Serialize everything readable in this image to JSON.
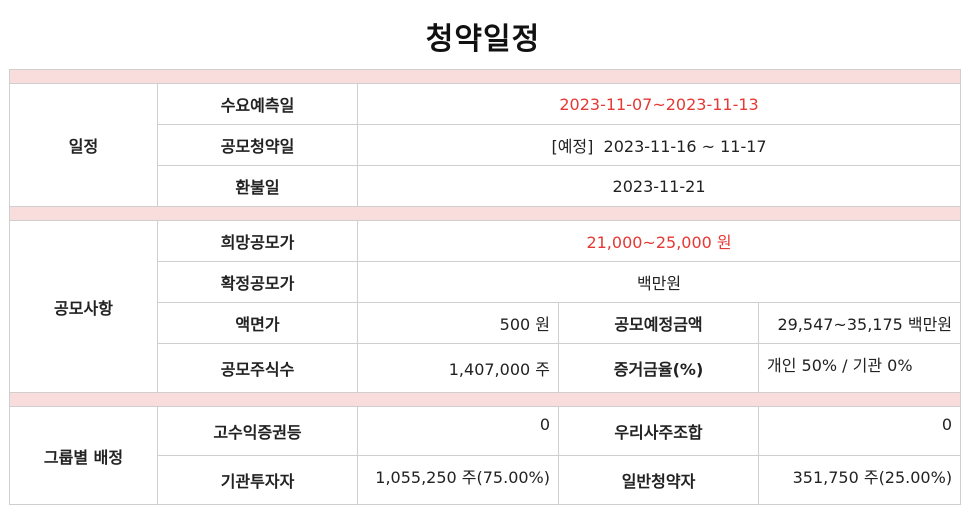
{
  "title": "청약일정",
  "schedule": {
    "section_label": "일정",
    "demand_forecast": {
      "label": "수요예측일",
      "value": "2023-11-07~2023-11-13"
    },
    "subscription": {
      "label": "공모청약일",
      "value": "[예정]  2023-11-16 ~ 11-17"
    },
    "refund": {
      "label": "환불일",
      "value": "2023-11-21"
    }
  },
  "offering": {
    "section_label": "공모사항",
    "desired_price": {
      "label": "희망공모가",
      "value": "21,000~25,000 원"
    },
    "confirmed_price": {
      "label": "확정공모가",
      "value": "백만원"
    },
    "par_value": {
      "label": "액면가",
      "value": "500 원"
    },
    "planned_amount": {
      "label": "공모예정금액",
      "value": "29,547~35,175 백만원"
    },
    "shares": {
      "label": "공모주식수",
      "value": "1,407,000 주"
    },
    "margin_rate": {
      "label": "증거금율(%)",
      "value": "개인 50% / 기관 0%"
    }
  },
  "allocation": {
    "section_label": "그룹별 배정",
    "high_yield": {
      "label": "고수익증권등",
      "value": "0"
    },
    "employee_union": {
      "label": "우리사주조합",
      "value": "0"
    },
    "institutional": {
      "label": "기관투자자",
      "value": "1,055,250 주(75.00%)"
    },
    "retail": {
      "label": "일반청약자",
      "value": "351,750 주(25.00%)"
    }
  },
  "colors": {
    "highlight_text": "#e53935",
    "separator_row": "#f9dcdc",
    "border": "#cfcfcf"
  }
}
